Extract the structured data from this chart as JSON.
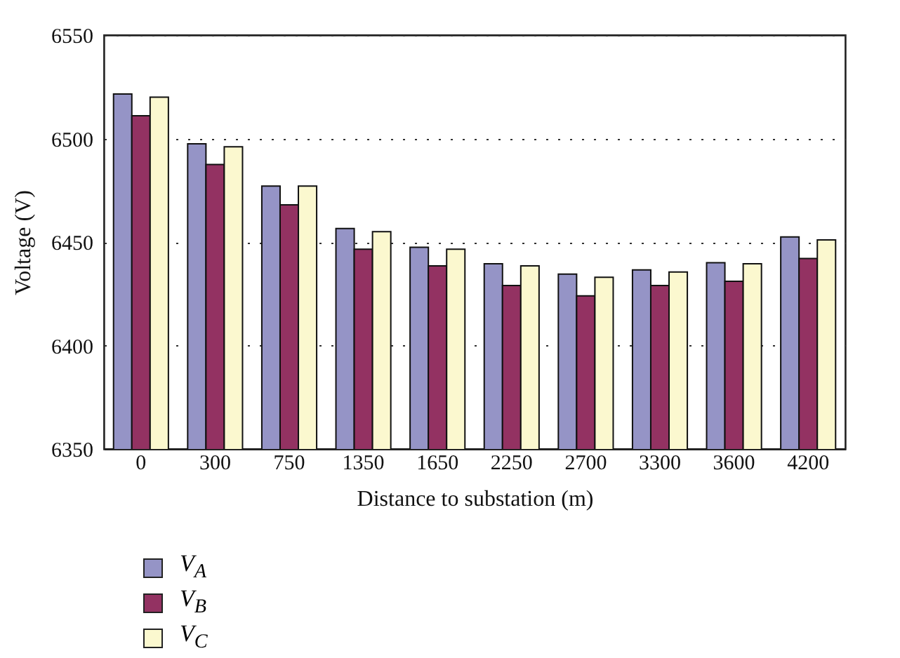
{
  "chart_data": {
    "type": "bar",
    "xlabel": "Distance to substation (m)",
    "ylabel": "Voltage (V)",
    "categories": [
      "0",
      "300",
      "750",
      "1350",
      "1650",
      "2250",
      "2700",
      "3300",
      "3600",
      "4200"
    ],
    "series": [
      {
        "name": "V$_{A}$",
        "color": "#9594c6",
        "values": [
          6521.5,
          6497.5,
          6477,
          6456.5,
          6447.5,
          6439.5,
          6434.5,
          6436.5,
          6440,
          6452.5
        ]
      },
      {
        "name": "V$_{B}$",
        "color": "#933262",
        "values": [
          6511,
          6487.5,
          6468,
          6446.5,
          6438.5,
          6429,
          6424,
          6429,
          6431,
          6442
        ]
      },
      {
        "name": "V$_{C}$",
        "color": "#fbf8cf",
        "values": [
          6520,
          6496,
          6477,
          6455,
          6446.5,
          6438.5,
          6433,
          6435.5,
          6439.5,
          6451
        ]
      }
    ],
    "ylim": [
      6350,
      6550
    ],
    "yticks": [
      6350,
      6400,
      6450,
      6500,
      6550
    ],
    "grid": "y",
    "legend": "bottom left"
  }
}
